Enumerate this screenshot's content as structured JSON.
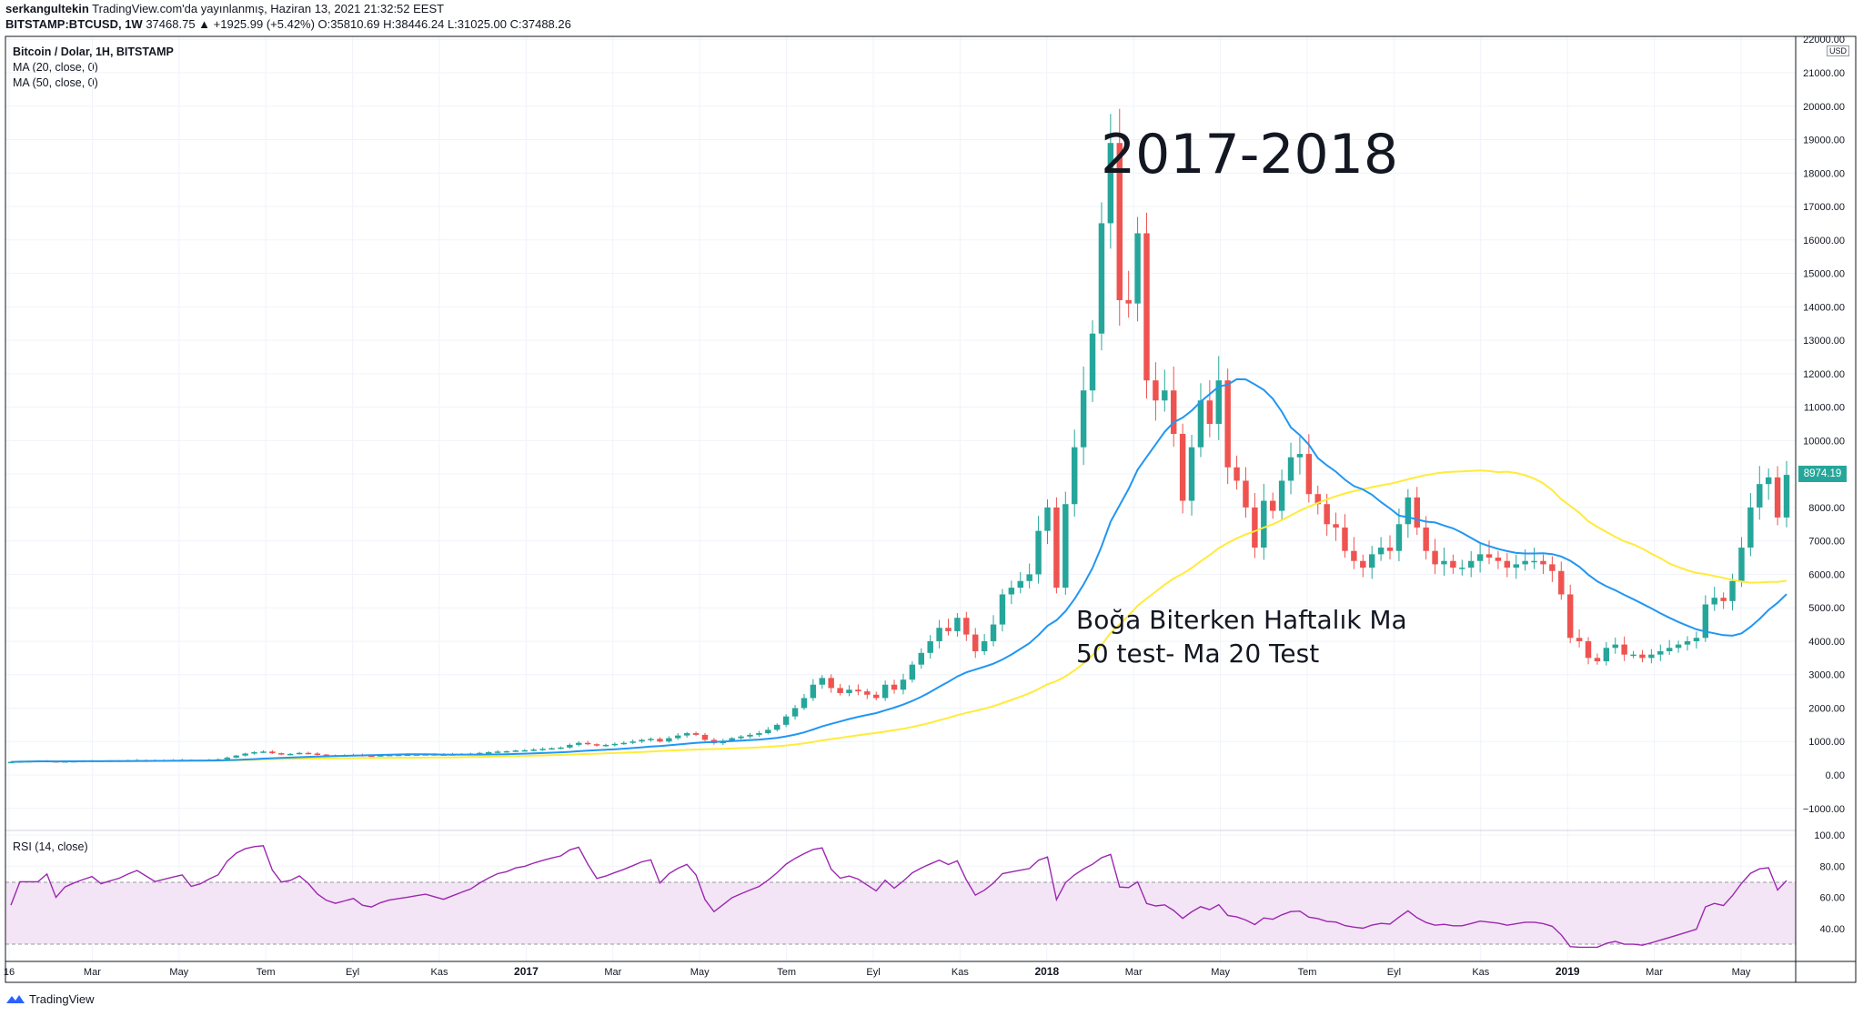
{
  "header": {
    "author": "serkangultekin",
    "published": "TradingView.com'da yayınlanmış, Haziran 13, 2021 21:32:52 EEST",
    "symbol": "BITSTAMP:BTCUSD, 1W",
    "quote": "37468.75 ▲ +1925.99 (+5.42%) O:35810.69 H:38446.24 L:31025.00 C:37488.26"
  },
  "legend": {
    "title": "Bitcoin / Dolar, 1H, BITSTAMP",
    "ma20": "MA (20, close, 0)",
    "ma50": "MA (50, close, 0)",
    "rsi": "RSI (14, close)"
  },
  "annotations": {
    "title": "2017-2018",
    "note_line1": "Boğa Biterken Haftalık Ma",
    "note_line2": "50 test- Ma 20 Test"
  },
  "price_tag": "8974.19",
  "currency": "USD",
  "footer": {
    "brand": "TradingView"
  },
  "colors": {
    "up": "#26a69a",
    "down": "#ef5350",
    "ma20": "#2196f3",
    "ma50": "#ffeb3b",
    "rsi": "#9c27b0",
    "rsi_band": "#f3e5f5"
  },
  "chart_data": {
    "type": "candlestick",
    "price_axis": {
      "min": -1000,
      "max": 22000,
      "ticks": [
        "22000.00",
        "21000.00",
        "20000.00",
        "19000.00",
        "18000.00",
        "17000.00",
        "16000.00",
        "15000.00",
        "14000.00",
        "13000.00",
        "12000.00",
        "11000.00",
        "10000.00",
        "9000.00",
        "8000.00",
        "7000.00",
        "6000.00",
        "5000.00",
        "4000.00",
        "3000.00",
        "2000.00",
        "1000.00",
        "0.00",
        "−1000.00"
      ]
    },
    "rsi_axis": {
      "min": 25,
      "max": 100,
      "ticks": [
        "100.00",
        "80.00",
        "60.00",
        "40.00"
      ],
      "band": [
        30,
        70
      ]
    },
    "time_ticks": [
      "16",
      "Mar",
      "May",
      "Tem",
      "Eyl",
      "Kas",
      "2017",
      "Mar",
      "May",
      "Tem",
      "Eyl",
      "Kas",
      "2018",
      "Mar",
      "May",
      "Tem",
      "Eyl",
      "Kas",
      "2019",
      "Mar",
      "May"
    ],
    "close": [
      390,
      405,
      415,
      420,
      410,
      400,
      410,
      415,
      420,
      425,
      420,
      425,
      430,
      440,
      450,
      445,
      440,
      445,
      450,
      455,
      445,
      450,
      460,
      470,
      520,
      580,
      640,
      680,
      700,
      650,
      620,
      630,
      660,
      640,
      610,
      590,
      580,
      590,
      600,
      580,
      575,
      590,
      600,
      605,
      610,
      615,
      620,
      615,
      610,
      620,
      630,
      640,
      660,
      680,
      700,
      710,
      730,
      740,
      760,
      780,
      800,
      820,
      900,
      960,
      920,
      880,
      900,
      930,
      960,
      1000,
      1050,
      1080,
      1000,
      1100,
      1180,
      1250,
      1200,
      1050,
      950,
      1020,
      1100,
      1150,
      1200,
      1250,
      1350,
      1500,
      1750,
      2000,
      2300,
      2700,
      2900,
      2600,
      2450,
      2550,
      2500,
      2400,
      2300,
      2700,
      2550,
      2850,
      3300,
      3650,
      4000,
      4400,
      4300,
      4700,
      4200,
      3700,
      4000,
      4500,
      5400,
      5600,
      5800,
      6000,
      7300,
      8000,
      5600,
      8100,
      9800,
      11500,
      13200,
      16500,
      18900,
      14200,
      14100,
      16200,
      11800,
      11200,
      11500,
      10200,
      8200,
      9800,
      11200,
      10500,
      11800,
      9200,
      8800,
      8000,
      6800,
      8200,
      7900,
      8800,
      9500,
      9600,
      8400,
      8100,
      7500,
      7400,
      6700,
      6400,
      6200,
      6600,
      6800,
      6700,
      7500,
      8300,
      7400,
      6700,
      6300,
      6400,
      6200,
      6200,
      6400,
      6600,
      6500,
      6400,
      6200,
      6300,
      6400,
      6400,
      6300,
      6100,
      5400,
      4100,
      4000,
      3500,
      3400,
      3800,
      3900,
      3600,
      3600,
      3500,
      3600,
      3700,
      3800,
      3900,
      4000,
      4100,
      5100,
      5300,
      5200,
      5800,
      6800,
      8000,
      8700,
      8900,
      7700,
      8974
    ]
  }
}
